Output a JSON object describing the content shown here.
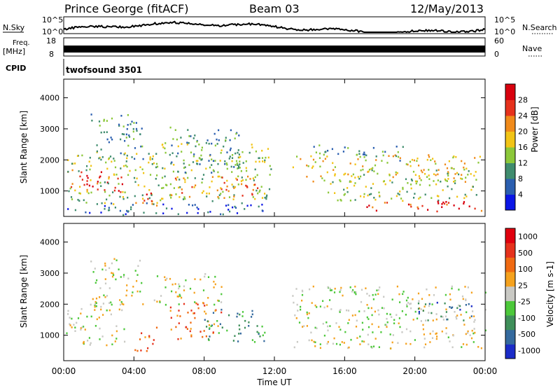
{
  "header": {
    "title": "Prince George (fitACF)",
    "beam": "Beam 03",
    "date": "12/May/2013"
  },
  "top_panels": {
    "nsky": {
      "label": "N.Sky",
      "ticks": [
        "10^5",
        "10^0"
      ]
    },
    "nsearch": {
      "label": "N.Search",
      "ticks": [
        "10^5",
        "10^0"
      ]
    },
    "freq": {
      "label_line1": "Freq.",
      "label_line2": "[MHz]",
      "ticks": [
        "18",
        "8"
      ]
    },
    "nave": {
      "label": "Nave",
      "ticks": [
        "60",
        "0"
      ]
    },
    "cpid": {
      "label": "CPID",
      "value": "twofsound 3501"
    }
  },
  "x_axis": {
    "label": "Time UT",
    "ticks": [
      "00:00",
      "04:00",
      "08:00",
      "12:00",
      "16:00",
      "20:00",
      "00:00"
    ]
  },
  "chart_data": [
    {
      "type": "heatmap",
      "name": "power",
      "ylabel": "Slant Range [km]",
      "x_range_hours": [
        0,
        24
      ],
      "ylim": [
        180,
        4600
      ],
      "y_ticks": [
        "1000",
        "2000",
        "3000",
        "4000"
      ],
      "colorbar": {
        "label": "Power [dB]",
        "ticks": [
          "4",
          "8",
          "12",
          "16",
          "20",
          "24",
          "28"
        ],
        "colors": [
          "#0b16e6",
          "#2b5fb0",
          "#3f8c6e",
          "#8cc83a",
          "#f2c416",
          "#f08a1a",
          "#e6321c",
          "#d8000e"
        ]
      },
      "echo_regions": [
        {
          "t0": 0.2,
          "t1": 3.5,
          "r0": 950,
          "r1": 1700,
          "level": 6
        },
        {
          "t0": 0.2,
          "t1": 5.5,
          "r0": 600,
          "r1": 2300,
          "level": 3
        },
        {
          "t0": 1.5,
          "t1": 4.5,
          "r0": 2000,
          "r1": 3500,
          "level": 2
        },
        {
          "t0": 4.0,
          "t1": 5.5,
          "r0": 500,
          "r1": 1000,
          "level": 6
        },
        {
          "t0": 5.5,
          "t1": 11.8,
          "r0": 700,
          "r1": 2600,
          "level": 3
        },
        {
          "t0": 6.0,
          "t1": 11.5,
          "r0": 800,
          "r1": 1500,
          "level": 5
        },
        {
          "t0": 6.0,
          "t1": 10.0,
          "r0": 1600,
          "r1": 3100,
          "level": 2
        },
        {
          "t0": 0.2,
          "t1": 11.5,
          "r0": 250,
          "r1": 650,
          "level": 1
        },
        {
          "t0": 13.0,
          "t1": 23.8,
          "r0": 1300,
          "r1": 2200,
          "level": 4
        },
        {
          "t0": 15.0,
          "t1": 23.5,
          "r0": 700,
          "r1": 1700,
          "level": 3
        },
        {
          "t0": 17.0,
          "t1": 23.8,
          "r0": 350,
          "r1": 700,
          "level": 6
        },
        {
          "t0": 14.0,
          "t1": 19.5,
          "r0": 2000,
          "r1": 2500,
          "level": 2
        }
      ]
    },
    {
      "type": "heatmap",
      "name": "velocity",
      "ylabel": "Slant Range [km]",
      "x_range_hours": [
        0,
        24
      ],
      "ylim": [
        180,
        4600
      ],
      "y_ticks": [
        "1000",
        "2000",
        "3000",
        "4000"
      ],
      "colorbar": {
        "label": "Velocity [m s-1]",
        "ticks": [
          "1000",
          "500",
          "100",
          "25",
          "-25",
          "-100",
          "-500",
          "-1000"
        ],
        "colors": [
          "#1b2cc8",
          "#356a9e",
          "#3f8f5a",
          "#4cc83a",
          "#c9c9c4",
          "#f5a21e",
          "#f06a12",
          "#e6321c",
          "#e0000e"
        ]
      },
      "echo_regions": [
        {
          "t0": 0.0,
          "t1": 3.5,
          "r0": 700,
          "r1": 2100,
          "level": 4
        },
        {
          "t0": 1.5,
          "t1": 4.5,
          "r0": 2000,
          "r1": 3500,
          "level": 4
        },
        {
          "t0": 4.0,
          "t1": 5.3,
          "r0": 500,
          "r1": 1300,
          "level": 6
        },
        {
          "t0": 6.0,
          "t1": 9.0,
          "r0": 900,
          "r1": 2100,
          "level": 6
        },
        {
          "t0": 8.0,
          "t1": 11.5,
          "r0": 800,
          "r1": 1900,
          "level": 2
        },
        {
          "t0": 5.0,
          "t1": 9.0,
          "r0": 2000,
          "r1": 3000,
          "level": 4
        },
        {
          "t0": 13.0,
          "t1": 24.0,
          "r0": 600,
          "r1": 2600,
          "level": 4
        },
        {
          "t0": 20.0,
          "t1": 23.5,
          "r0": 1500,
          "r1": 2100,
          "level": 1
        }
      ]
    }
  ]
}
